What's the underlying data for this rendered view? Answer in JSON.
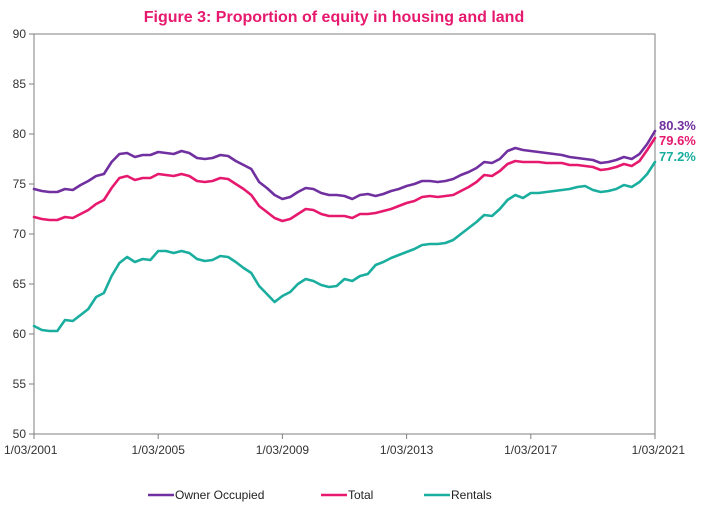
{
  "chart_data": {
    "type": "line",
    "title": "Figure 3: Proportion of equity in housing and land",
    "xlabel": "",
    "ylabel": "",
    "ylim": [
      50,
      90
    ],
    "yticks": [
      50,
      55,
      60,
      65,
      70,
      75,
      80,
      85,
      90
    ],
    "xlim": [
      2001.0,
      2021.0
    ],
    "xticks": [
      {
        "value": 2001,
        "label": "1/03/2001"
      },
      {
        "value": 2005,
        "label": "1/03/2005"
      },
      {
        "value": 2009,
        "label": "1/03/2009"
      },
      {
        "value": 2013,
        "label": "1/03/2013"
      },
      {
        "value": 2017,
        "label": "1/03/2017"
      },
      {
        "value": 2021,
        "label": "1/03/2021"
      }
    ],
    "grid": false,
    "legend_position": "bottom",
    "x": [
      2001.0,
      2001.25,
      2001.5,
      2001.75,
      2002.0,
      2002.25,
      2002.5,
      2002.75,
      2003.0,
      2003.25,
      2003.5,
      2003.75,
      2004.0,
      2004.25,
      2004.5,
      2004.75,
      2005.0,
      2005.25,
      2005.5,
      2005.75,
      2006.0,
      2006.25,
      2006.5,
      2006.75,
      2007.0,
      2007.25,
      2007.5,
      2007.75,
      2008.0,
      2008.25,
      2008.5,
      2008.75,
      2009.0,
      2009.25,
      2009.5,
      2009.75,
      2010.0,
      2010.25,
      2010.5,
      2010.75,
      2011.0,
      2011.25,
      2011.5,
      2011.75,
      2012.0,
      2012.25,
      2012.5,
      2012.75,
      2013.0,
      2013.25,
      2013.5,
      2013.75,
      2014.0,
      2014.25,
      2014.5,
      2014.75,
      2015.0,
      2015.25,
      2015.5,
      2015.75,
      2016.0,
      2016.25,
      2016.5,
      2016.75,
      2017.0,
      2017.25,
      2017.5,
      2017.75,
      2018.0,
      2018.25,
      2018.5,
      2018.75,
      2019.0,
      2019.25,
      2019.5,
      2019.75,
      2020.0,
      2020.25,
      2020.5,
      2020.75,
      2021.0
    ],
    "series": [
      {
        "name": "Owner Occupied",
        "color": "#7030A0",
        "end_label": "80.3%",
        "values": [
          74.5,
          74.3,
          74.2,
          74.2,
          74.5,
          74.4,
          74.9,
          75.3,
          75.8,
          76.0,
          77.2,
          78.0,
          78.1,
          77.7,
          77.9,
          77.9,
          78.2,
          78.1,
          78.0,
          78.3,
          78.1,
          77.6,
          77.5,
          77.6,
          77.9,
          77.8,
          77.3,
          76.9,
          76.5,
          75.2,
          74.6,
          73.9,
          73.5,
          73.7,
          74.2,
          74.6,
          74.5,
          74.1,
          73.9,
          73.9,
          73.8,
          73.5,
          73.9,
          74.0,
          73.8,
          74.0,
          74.3,
          74.5,
          74.8,
          75.0,
          75.3,
          75.3,
          75.2,
          75.3,
          75.5,
          75.9,
          76.2,
          76.6,
          77.2,
          77.1,
          77.5,
          78.3,
          78.6,
          78.4,
          78.3,
          78.2,
          78.1,
          78.0,
          77.9,
          77.7,
          77.6,
          77.5,
          77.4,
          77.1,
          77.2,
          77.4,
          77.7,
          77.5,
          78.0,
          79.0,
          80.3
        ]
      },
      {
        "name": "Total",
        "color": "#E6196E",
        "end_label": "79.6%",
        "values": [
          71.7,
          71.5,
          71.4,
          71.4,
          71.7,
          71.6,
          72.0,
          72.4,
          73.0,
          73.4,
          74.6,
          75.6,
          75.8,
          75.4,
          75.6,
          75.6,
          76.0,
          75.9,
          75.8,
          76.0,
          75.8,
          75.3,
          75.2,
          75.3,
          75.6,
          75.5,
          75.0,
          74.5,
          73.9,
          72.8,
          72.2,
          71.6,
          71.3,
          71.5,
          72.0,
          72.5,
          72.4,
          72.0,
          71.8,
          71.8,
          71.8,
          71.6,
          72.0,
          72.0,
          72.1,
          72.3,
          72.5,
          72.8,
          73.1,
          73.3,
          73.7,
          73.8,
          73.7,
          73.8,
          73.9,
          74.3,
          74.7,
          75.2,
          75.9,
          75.8,
          76.3,
          77.0,
          77.3,
          77.2,
          77.2,
          77.2,
          77.1,
          77.1,
          77.1,
          76.9,
          76.9,
          76.8,
          76.7,
          76.4,
          76.5,
          76.7,
          77.0,
          76.8,
          77.3,
          78.4,
          79.6
        ]
      },
      {
        "name": "Rentals",
        "color": "#1AAE9F",
        "end_label": "77.2%",
        "values": [
          60.8,
          60.4,
          60.3,
          60.3,
          61.4,
          61.3,
          61.9,
          62.5,
          63.7,
          64.1,
          65.8,
          67.1,
          67.7,
          67.2,
          67.5,
          67.4,
          68.3,
          68.3,
          68.1,
          68.3,
          68.1,
          67.5,
          67.3,
          67.4,
          67.8,
          67.7,
          67.2,
          66.6,
          66.1,
          64.8,
          64.0,
          63.2,
          63.8,
          64.2,
          65.0,
          65.5,
          65.3,
          64.9,
          64.7,
          64.8,
          65.5,
          65.3,
          65.8,
          66.0,
          66.9,
          67.2,
          67.6,
          67.9,
          68.2,
          68.5,
          68.9,
          69.0,
          69.0,
          69.1,
          69.4,
          70.0,
          70.6,
          71.2,
          71.9,
          71.8,
          72.5,
          73.4,
          73.9,
          73.6,
          74.1,
          74.1,
          74.2,
          74.3,
          74.4,
          74.5,
          74.7,
          74.8,
          74.4,
          74.2,
          74.3,
          74.5,
          74.9,
          74.7,
          75.2,
          76.0,
          77.2
        ]
      }
    ]
  }
}
